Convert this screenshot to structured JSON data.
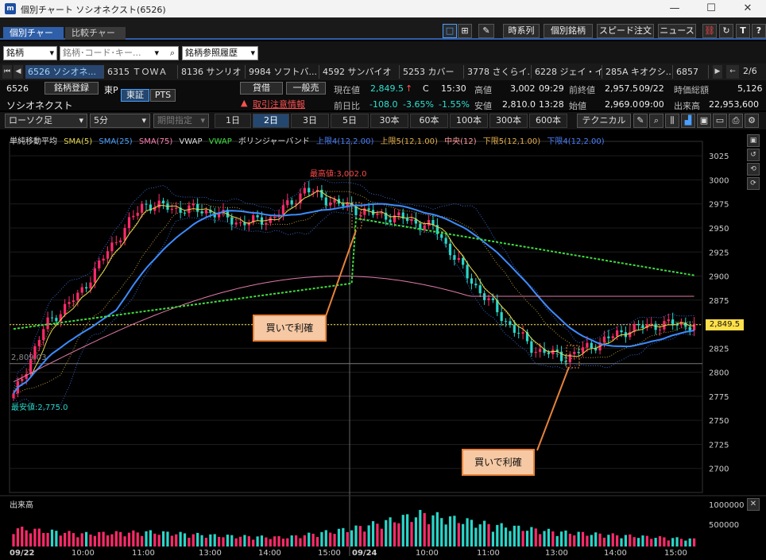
{
  "window": {
    "title": "個別チャート ソシオネクスト(6526)",
    "logo": "m",
    "buttons": {
      "minimize": "—",
      "maximize": "☐",
      "close": "✕"
    }
  },
  "tabs": [
    {
      "label": "個別チャート",
      "active": true
    },
    {
      "label": "比較チャート",
      "active": false
    }
  ],
  "toolbar_right": {
    "buttons": [
      "時系列",
      "個別銘柄",
      "スピード注文",
      "ニュース"
    ],
    "icons": [
      "single-view-icon",
      "grid-view-icon",
      "pen-icon",
      "link-icon",
      "refresh-icon",
      "text-icon",
      "help-icon"
    ],
    "glyphs": {
      "single": "□",
      "grid": "⊞",
      "pen": "✎",
      "link": "⛓",
      "refresh": "↻",
      "text": "T",
      "help": "?"
    }
  },
  "search": {
    "type_select": "銘柄",
    "input_placeholder": "銘柄･コード･キー...",
    "history_button": "銘柄参照履歴",
    "search_glyph": "⌕",
    "dropdown_glyph": "▾"
  },
  "stock_tabs": {
    "items": [
      "6526 ソシオネ...",
      "6315 ＴＯＷＡ",
      "8136 サンリオ",
      "9984 ソフトバ...",
      "4592 サンバイオ",
      "5253 カバー",
      "3778 さくらイ...",
      "6228 ジェイ・イ...",
      "285A キオクシ...",
      "6857"
    ],
    "active_index": 0,
    "page": "2/6",
    "nav": {
      "first": "⏮",
      "prev": "◀",
      "next": "▶",
      "back": "←"
    }
  },
  "info": {
    "code": "6526",
    "name": "ソシオネクスト",
    "register_button": "銘柄登録",
    "exchange": "東P",
    "market_buttons": [
      "東証",
      "PTS"
    ],
    "margin_button": "貸借",
    "general_sell_button": "一般売",
    "alert": "取引注意情報",
    "alert_glyph": "▲",
    "current_price_label": "現在値",
    "current_price": "2,849.5",
    "current_arrow": "↑",
    "current_flag": "C",
    "current_time": "15:30",
    "change_label": "前日比",
    "change": "-108.0",
    "change_pct": "-3.65%",
    "change_pct2": "-1.55%",
    "high_label": "高値",
    "high": "3,002",
    "high_time": "09:29",
    "low_label": "安値",
    "low": "2,810.0",
    "low_time": "13:28",
    "prev_close_label": "前終値",
    "prev_close": "2,957.5",
    "prev_close_date": "09/22",
    "open_label": "始値",
    "open": "2,969.0",
    "open_time": "09:00",
    "market_cap_label": "時価総額",
    "market_cap": "5,126",
    "volume_label": "出来高",
    "volume": "22,953,600"
  },
  "chart_toolbar": {
    "chart_type": "ローソク足",
    "interval": "5分",
    "period_select": "期間指定",
    "periods": [
      "1日",
      "2日",
      "3日",
      "5日",
      "30本",
      "60本",
      "100本",
      "300本",
      "600本"
    ],
    "active_period": "2日",
    "technical_button": "テクニカル",
    "icons": [
      "draw-icon",
      "zoom-icon",
      "candle-icon",
      "bar-chart-icon",
      "save-icon",
      "folder-icon",
      "print-icon",
      "settings-icon"
    ],
    "glyphs": [
      "✎",
      "⌕",
      "⫼",
      "▟",
      "▣",
      "▭",
      "⎙",
      "⚙"
    ]
  },
  "legend": [
    {
      "text": "単純移動平均",
      "color": "#dddddd"
    },
    {
      "text": "SMA(5)",
      "color": "#e6d84a"
    },
    {
      "text": "SMA(25)",
      "color": "#4aa0ff"
    },
    {
      "text": "SMA(75)",
      "color": "#ff7fb0"
    },
    {
      "text": "VWAP",
      "color": "#dddddd"
    },
    {
      "text": "VWAP",
      "color": "#3ee03e"
    },
    {
      "text": "ボリンジャーバンド",
      "color": "#dddddd"
    },
    {
      "text": "上限4(12,2.00)",
      "color": "#4a7fff"
    },
    {
      "text": "上限5(12,1.00)",
      "color": "#e6b04a"
    },
    {
      "text": "中央(12)",
      "color": "#ff9a9a"
    },
    {
      "text": "下限5(12,1.00)",
      "color": "#e6b04a"
    },
    {
      "text": "下限4(12,2.00)",
      "color": "#4a7fff"
    }
  ],
  "right_tools": [
    "▣",
    "↺",
    "⟲",
    "⟳"
  ],
  "colors": {
    "up": "#ff2a6a",
    "down": "#2ad6c9",
    "sma5": "#e6d84a",
    "sma25": "#3c8cff",
    "sma75": "#e07aa8",
    "vwap": "#3ee03e",
    "bb2": "#3566c8",
    "bb1": "#b89a3a",
    "current_price": "#ffe04a"
  },
  "annotations": {
    "high": "最高値:3,002.0",
    "low": "最安値:2,775.0",
    "crosshair": "2,809.03",
    "callout1": "買いで利確",
    "callout2": "買いで利確"
  },
  "volume_panel": {
    "title": "出来高",
    "ticks": [
      "1000000",
      "500000"
    ],
    "close_glyph": "✕"
  },
  "chart_data": {
    "type": "candlestick",
    "ylim": [
      2675,
      3040
    ],
    "y_ticks": [
      3025,
      3000,
      2975,
      2950,
      2925,
      2900,
      2875,
      2850,
      2825,
      2800,
      2775,
      2750,
      2725,
      2700
    ],
    "current_price": 2849.5,
    "current_label": "2,849.5",
    "x_labels": [
      "09/22",
      "10:00",
      "11:00",
      "13:00",
      "14:00",
      "15:00",
      "09/24",
      "10:00",
      "11:00",
      "13:00",
      "14:00",
      "15:00"
    ],
    "key_prices": [
      2775,
      2850,
      2880,
      2930,
      2975,
      2970,
      2968,
      2955,
      2960,
      2990,
      2975,
      2965,
      2960,
      2950,
      2900,
      2860,
      2825,
      2815,
      2830,
      2845,
      2850,
      2849.5
    ],
    "volume_ylim": [
      0,
      1300000
    ],
    "volume_profile": [
      0.5,
      0.35,
      0.4,
      0.3,
      0.25,
      0.5,
      0.9,
      0.6,
      0.4,
      0.3,
      0.2
    ]
  }
}
